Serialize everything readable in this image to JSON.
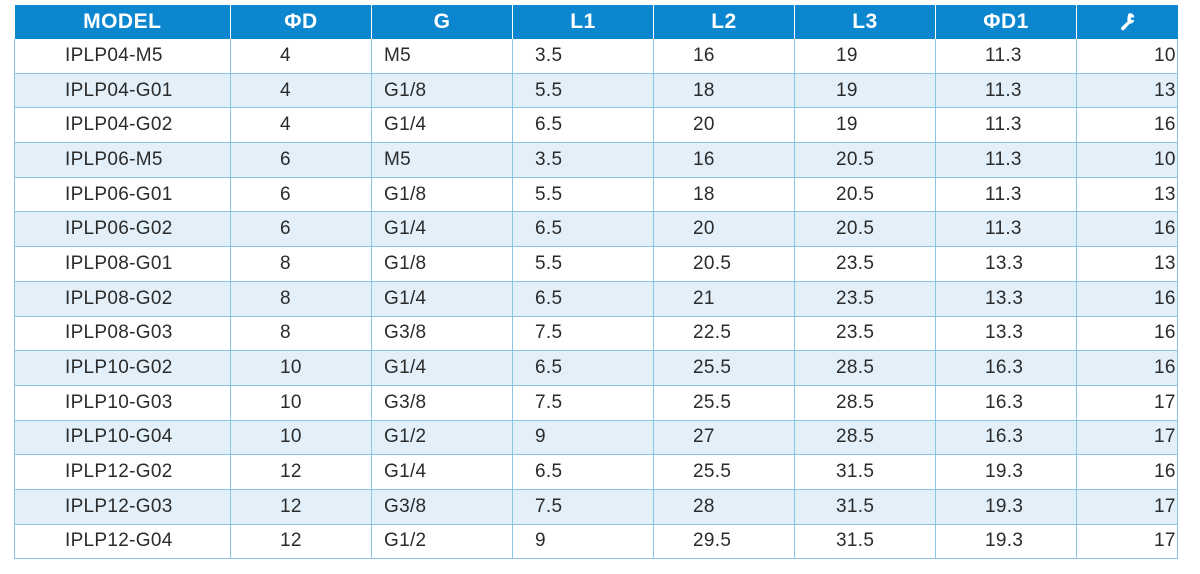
{
  "table": {
    "headers": {
      "model": "MODEL",
      "d": "ΦD",
      "g": "G",
      "l1": "L1",
      "l2": "L2",
      "l3": "L3",
      "d1": "ΦD1",
      "torque_icon": "wrench-icon"
    },
    "rows": [
      {
        "model": "IPLP04-M5",
        "d": "4",
        "g": "M5",
        "l1": "3.5",
        "l2": "16",
        "l3": "19",
        "d1": "11.3",
        "t": "10"
      },
      {
        "model": "IPLP04-G01",
        "d": "4",
        "g": "G1/8",
        "l1": "5.5",
        "l2": "18",
        "l3": "19",
        "d1": "11.3",
        "t": "13"
      },
      {
        "model": "IPLP04-G02",
        "d": "4",
        "g": "G1/4",
        "l1": "6.5",
        "l2": "20",
        "l3": "19",
        "d1": "11.3",
        "t": "16"
      },
      {
        "model": "IPLP06-M5",
        "d": "6",
        "g": "M5",
        "l1": "3.5",
        "l2": "16",
        "l3": "20.5",
        "d1": "11.3",
        "t": "10"
      },
      {
        "model": "IPLP06-G01",
        "d": "6",
        "g": "G1/8",
        "l1": "5.5",
        "l2": "18",
        "l3": "20.5",
        "d1": "11.3",
        "t": "13"
      },
      {
        "model": "IPLP06-G02",
        "d": "6",
        "g": "G1/4",
        "l1": "6.5",
        "l2": "20",
        "l3": "20.5",
        "d1": "11.3",
        "t": "16"
      },
      {
        "model": "IPLP08-G01",
        "d": "8",
        "g": "G1/8",
        "l1": "5.5",
        "l2": "20.5",
        "l3": "23.5",
        "d1": "13.3",
        "t": "13"
      },
      {
        "model": "IPLP08-G02",
        "d": "8",
        "g": "G1/4",
        "l1": "6.5",
        "l2": "21",
        "l3": "23.5",
        "d1": "13.3",
        "t": "16"
      },
      {
        "model": "IPLP08-G03",
        "d": "8",
        "g": "G3/8",
        "l1": "7.5",
        "l2": "22.5",
        "l3": "23.5",
        "d1": "13.3",
        "t": "16"
      },
      {
        "model": "IPLP10-G02",
        "d": "10",
        "g": "G1/4",
        "l1": "6.5",
        "l2": "25.5",
        "l3": "28.5",
        "d1": "16.3",
        "t": "16"
      },
      {
        "model": "IPLP10-G03",
        "d": "10",
        "g": "G3/8",
        "l1": "7.5",
        "l2": "25.5",
        "l3": "28.5",
        "d1": "16.3",
        "t": "17"
      },
      {
        "model": "IPLP10-G04",
        "d": "10",
        "g": "G1/2",
        "l1": "9",
        "l2": "27",
        "l3": "28.5",
        "d1": "16.3",
        "t": "17"
      },
      {
        "model": "IPLP12-G02",
        "d": "12",
        "g": "G1/4",
        "l1": "6.5",
        "l2": "25.5",
        "l3": "31.5",
        "d1": "19.3",
        "t": "16"
      },
      {
        "model": "IPLP12-G03",
        "d": "12",
        "g": "G3/8",
        "l1": "7.5",
        "l2": "28",
        "l3": "31.5",
        "d1": "19.3",
        "t": "17"
      },
      {
        "model": "IPLP12-G04",
        "d": "12",
        "g": "G1/2",
        "l1": "9",
        "l2": "29.5",
        "l3": "31.5",
        "d1": "19.3",
        "t": "17"
      }
    ]
  },
  "colors": {
    "header_bg": "#0b86cf",
    "header_text": "#ffffff",
    "row_alt_bg": "#e3f0fa",
    "grid": "#8cc4e6"
  }
}
